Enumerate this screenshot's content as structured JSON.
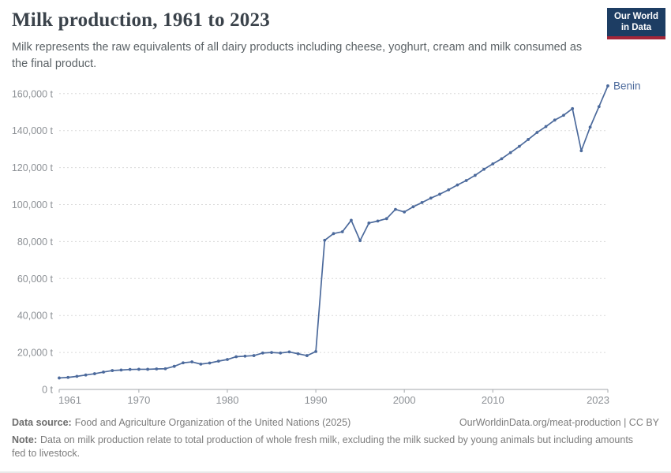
{
  "header": {
    "title": "Milk production, 1961 to 2023",
    "subtitle": "Milk represents the raw equivalents of all dairy products including cheese, yoghurt, cream and milk consumed as the final product.",
    "logo": {
      "line1": "Our World",
      "line2": "in Data",
      "bg_color": "#1d3d63",
      "accent_color": "#a52639"
    }
  },
  "chart_data": {
    "type": "line",
    "title": "Milk production, 1961 to 2023",
    "unit": "t",
    "grid": "horizontal-dashed",
    "legend_position": "end-of-line-label",
    "xlim": [
      1961,
      2023
    ],
    "ylim": [
      0,
      170000
    ],
    "x_ticks": [
      1961,
      1970,
      1980,
      1990,
      2000,
      2010,
      2023
    ],
    "y_ticks": [
      {
        "value": 0,
        "label": "0 t"
      },
      {
        "value": 20000,
        "label": "20,000 t"
      },
      {
        "value": 40000,
        "label": "40,000 t"
      },
      {
        "value": 60000,
        "label": "60,000 t"
      },
      {
        "value": 80000,
        "label": "80,000 t"
      },
      {
        "value": 100000,
        "label": "100,000 t"
      },
      {
        "value": 120000,
        "label": "120,000 t"
      },
      {
        "value": 140000,
        "label": "140,000 t"
      },
      {
        "value": 160000,
        "label": "160,000 t"
      }
    ],
    "series": [
      {
        "name": "Benin",
        "color": "#4c6a9c",
        "x": [
          1961,
          1962,
          1963,
          1964,
          1965,
          1966,
          1967,
          1968,
          1969,
          1970,
          1971,
          1972,
          1973,
          1974,
          1975,
          1976,
          1977,
          1978,
          1979,
          1980,
          1981,
          1982,
          1983,
          1984,
          1985,
          1986,
          1987,
          1988,
          1989,
          1990,
          1991,
          1992,
          1993,
          1994,
          1995,
          1996,
          1997,
          1998,
          1999,
          2000,
          2001,
          2002,
          2003,
          2004,
          2005,
          2006,
          2007,
          2008,
          2009,
          2010,
          2011,
          2012,
          2013,
          2014,
          2015,
          2016,
          2017,
          2018,
          2019,
          2020,
          2021,
          2022,
          2023
        ],
        "values": [
          6200,
          6500,
          7100,
          7800,
          8500,
          9400,
          10200,
          10500,
          10800,
          10900,
          10900,
          11100,
          11200,
          12500,
          14400,
          14900,
          13700,
          14300,
          15300,
          16200,
          17700,
          18000,
          18300,
          19700,
          20000,
          19700,
          20300,
          19300,
          18300,
          20500,
          80700,
          84300,
          85300,
          91500,
          80500,
          90000,
          91100,
          92400,
          97400,
          96000,
          98800,
          101100,
          103500,
          105600,
          108000,
          110600,
          113000,
          115800,
          119100,
          122000,
          124800,
          128100,
          131500,
          135200,
          139000,
          142200,
          145700,
          148300,
          151900,
          129100,
          141900,
          153000,
          164200
        ]
      }
    ]
  },
  "footer": {
    "source_label": "Data source:",
    "source_text": "Food and Agriculture Organization of the United Nations (2025)",
    "link_text": "OurWorldinData.org/meat-production | CC BY",
    "note_label": "Note:",
    "note_text": "Data on milk production relate to total production of whole fresh milk, excluding the milk sucked by young animals but including amounts fed to livestock."
  }
}
